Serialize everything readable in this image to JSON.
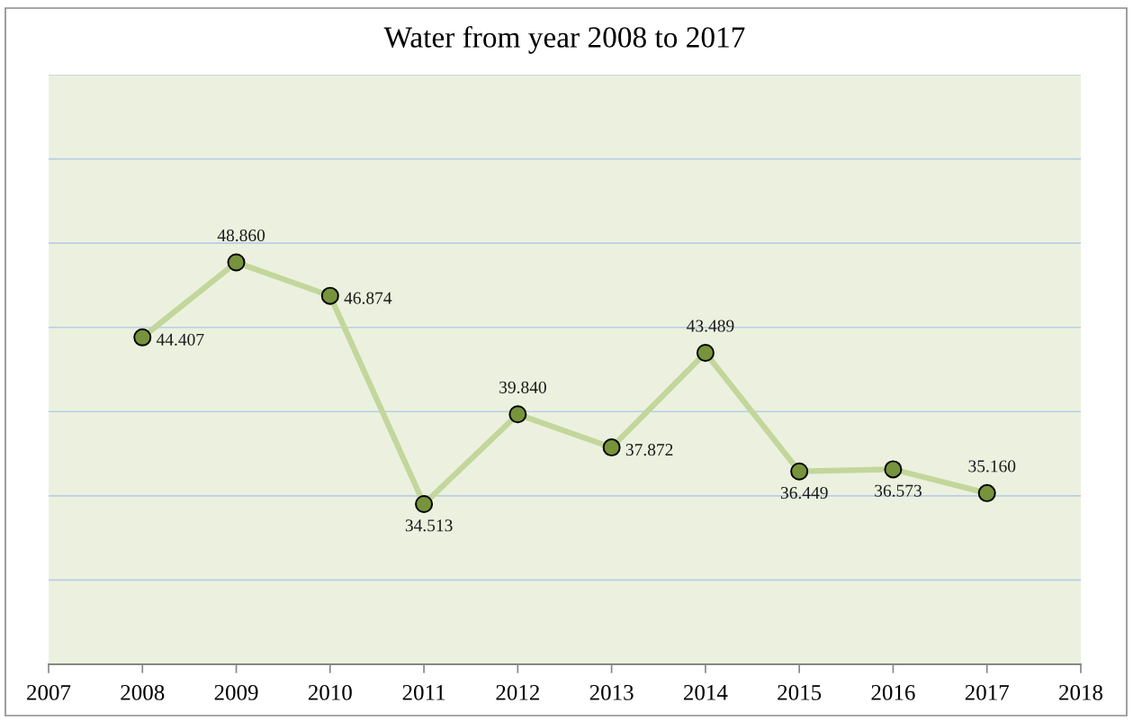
{
  "chart_data": {
    "type": "line",
    "title": "Water from year 2008 to 2017",
    "x": [
      2008,
      2009,
      2010,
      2011,
      2012,
      2013,
      2014,
      2015,
      2016,
      2017
    ],
    "series": [
      {
        "color": "#c3d69b",
        "colors": [
          "#77933c",
          "#77933c",
          "#77933c",
          "#77933c",
          "#77933c",
          "#77933c",
          "#77933c",
          "#77933c",
          "#77933c",
          "#77933c"
        ],
        "values": [
          44.407,
          48.86,
          46.874,
          34.513,
          39.84,
          37.872,
          43.489,
          36.449,
          36.573,
          35.16
        ],
        "value_labels": [
          "44.407",
          "48.860",
          "46.874",
          "34.513",
          "39.840",
          "37.872",
          "43.489",
          "36.449",
          "36.573",
          "35.160"
        ]
      }
    ],
    "xlim": [
      2007,
      2018
    ],
    "xticks": [
      2007,
      2008,
      2009,
      2010,
      2011,
      2012,
      2013,
      2014,
      2015,
      2016,
      2017,
      2018
    ],
    "ylim": [
      25,
      60
    ],
    "yticks": [
      {
        "value": 25,
        "label": null
      },
      {
        "value": 30,
        "label": null
      },
      {
        "value": 35,
        "label": null
      },
      {
        "value": 40,
        "label": null
      },
      {
        "value": 45,
        "label": null
      },
      {
        "value": 50,
        "label": null
      },
      {
        "value": 55,
        "label": null
      },
      {
        "value": 60,
        "label": null
      }
    ],
    "tick_labels": "x",
    "grid": "y",
    "marker": "circle",
    "line_style": "solid"
  }
}
